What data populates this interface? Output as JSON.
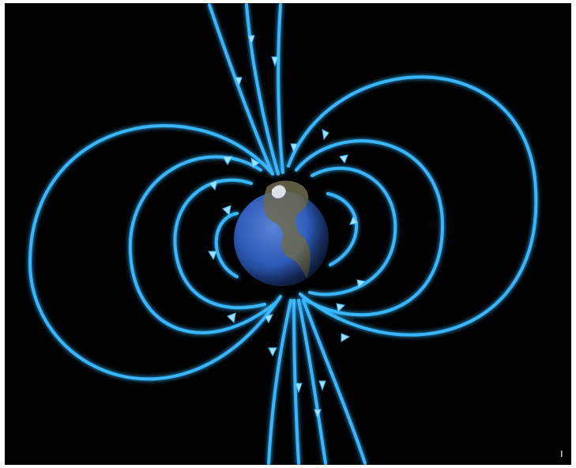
{
  "image": {
    "subject-icon": "earth-magnetic-field-icon",
    "colors": {
      "background": "#000000",
      "field_line": "#38b6ff",
      "field_line_glow": "#1e7fe0",
      "earth_ocean": "#2d5bb8",
      "earth_land": "#6f6a4e"
    }
  }
}
